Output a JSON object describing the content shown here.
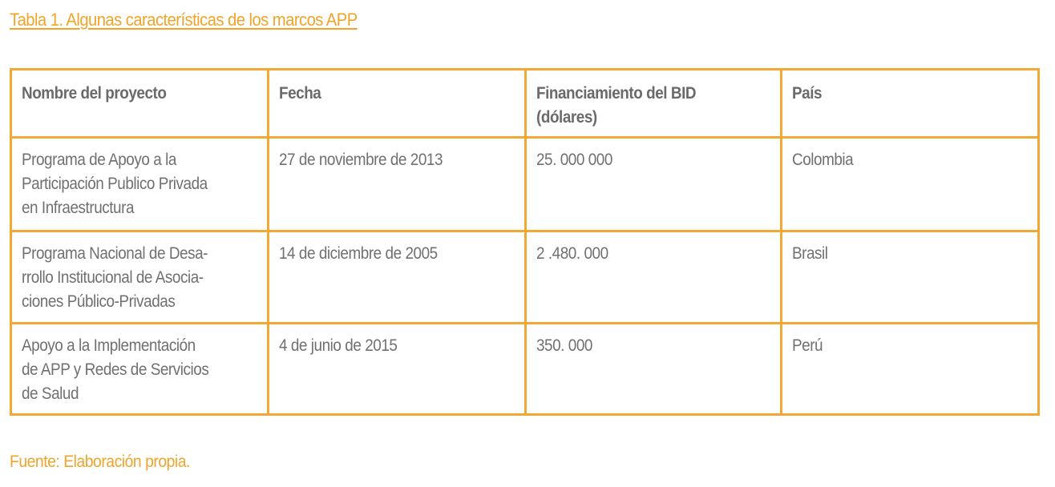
{
  "title": "Tabla 1. Algunas características de los marcos APP",
  "colors": {
    "accent": "#f0a42a",
    "border": "#f2a832",
    "text": "#707070"
  },
  "table": {
    "headers": [
      "Nombre del proyecto",
      "Fecha",
      "Financiamiento del BID\n(dólares)",
      "País"
    ],
    "rows": [
      {
        "project": "Programa de Apoyo a la\nParticipación Publico Privada\nen Infraestructura",
        "date": "27 de noviembre de 2013",
        "financing": "25. 000 000",
        "country": "Colombia"
      },
      {
        "project": "Programa Nacional de Desa-\nrrollo Institucional de Asocia-\nciones Público-Privadas",
        "date": "14 de diciembre de 2005",
        "financing": "2 .480. 000",
        "country": "Brasil"
      },
      {
        "project": "Apoyo a la Implementación\nde APP y Redes de Servicios\nde Salud",
        "date": "4 de junio de 2015",
        "financing": "350. 000",
        "country": "Perú"
      }
    ]
  },
  "source": "Fuente: Elaboración propia."
}
